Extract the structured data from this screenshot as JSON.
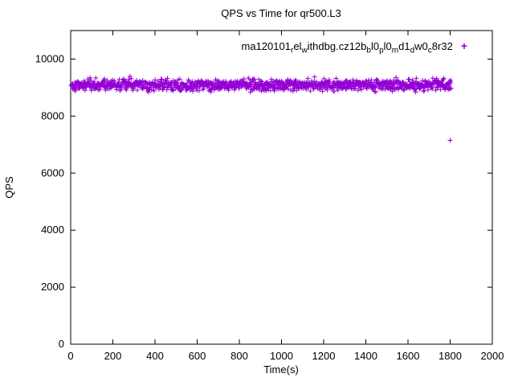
{
  "chart_data": {
    "type": "scatter",
    "title": "QPS vs Time for qr500.L3",
    "xlabel": "Time(s)",
    "ylabel": "QPS",
    "xlim": [
      0,
      2000
    ],
    "ylim": [
      0,
      11000
    ],
    "x_ticks": [
      0,
      200,
      400,
      600,
      800,
      1000,
      1200,
      1400,
      1600,
      1800,
      2000
    ],
    "y_ticks": [
      0,
      2000,
      4000,
      6000,
      8000,
      10000
    ],
    "grid": false,
    "legend_position": "top-inside",
    "series": [
      {
        "name": "ma120101_rel_withdbg.cz12b_bl0_pl0_md1_dw0_c8r32",
        "marker": "plus",
        "marker_glyph": "+",
        "color": "#9400D3",
        "band": {
          "description": "dense near-constant QPS band",
          "x_start": 2,
          "x_end": 1805,
          "y_mean": 9100,
          "y_spread": 170,
          "n_points": 1200
        },
        "outliers": [
          [
            1800,
            7150
          ]
        ]
      }
    ],
    "legend_segments": [
      {
        "t": "ma120101"
      },
      {
        "t": "r",
        "sub": true
      },
      {
        "t": "el"
      },
      {
        "t": "w",
        "sub": true
      },
      {
        "t": "ithdbg.cz12b"
      },
      {
        "t": "b",
        "sub": true
      },
      {
        "t": "l0"
      },
      {
        "t": "p",
        "sub": true
      },
      {
        "t": "l0"
      },
      {
        "t": "m",
        "sub": true
      },
      {
        "t": "d1"
      },
      {
        "t": "d",
        "sub": true
      },
      {
        "t": "w0"
      },
      {
        "t": "c",
        "sub": true
      },
      {
        "t": "8r32"
      }
    ]
  }
}
